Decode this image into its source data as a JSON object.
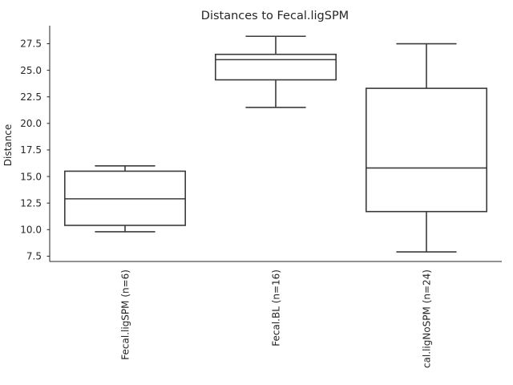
{
  "chart_data": {
    "type": "box",
    "title": "Distances to Fecal.ligSPM",
    "xlabel": "",
    "ylabel": "Distance",
    "ylim": [
      7.0,
      29.2
    ],
    "yticks": [
      7.5,
      10.0,
      12.5,
      15.0,
      17.5,
      20.0,
      22.5,
      25.0,
      27.5
    ],
    "ytick_labels": [
      "7.5",
      "10.0",
      "12.5",
      "15.0",
      "17.5",
      "20.0",
      "22.5",
      "25.0",
      "27.5"
    ],
    "categories": [
      "Fecal.ligSPM (n=6)",
      "Fecal.BL (n=16)",
      "cal.ligNoSPM (n=24)"
    ],
    "boxes": [
      {
        "min": 9.8,
        "q1": 10.4,
        "median": 12.9,
        "q3": 15.5,
        "max": 16.0
      },
      {
        "min": 21.5,
        "q1": 24.1,
        "median": 26.0,
        "q3": 26.5,
        "max": 28.2
      },
      {
        "min": 7.9,
        "q1": 11.7,
        "median": 15.8,
        "q3": 23.3,
        "max": 27.5
      }
    ],
    "grid": false,
    "legend": "none"
  }
}
